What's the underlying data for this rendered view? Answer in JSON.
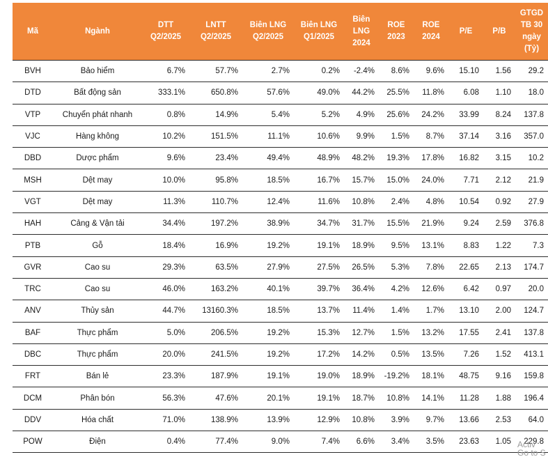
{
  "headers": [
    "Mã",
    "Ngành",
    "DTT\nQ2/2025",
    "LNTT\nQ2/2025",
    "Biên LNG\nQ2/2025",
    "Biên LNG\nQ1/2025",
    "Biên\nLNG\n2024",
    "ROE\n2023",
    "ROE\n2024",
    "P/E",
    "P/B",
    "GTGD\nTB 30\nngày\n(Tỷ)"
  ],
  "rows": [
    [
      "BVH",
      "Bảo hiểm",
      "6.7%",
      "57.7%",
      "2.7%",
      "0.2%",
      "-2.4%",
      "8.6%",
      "9.6%",
      "15.10",
      "1.56",
      "29.2"
    ],
    [
      "DTD",
      "Bất động sản",
      "333.1%",
      "650.8%",
      "57.6%",
      "49.0%",
      "44.2%",
      "25.5%",
      "11.8%",
      "6.08",
      "1.10",
      "18.0"
    ],
    [
      "VTP",
      "Chuyển phát nhanh",
      "0.8%",
      "14.9%",
      "5.4%",
      "5.2%",
      "4.9%",
      "25.6%",
      "24.2%",
      "33.99",
      "8.24",
      "137.8"
    ],
    [
      "VJC",
      "Hàng không",
      "10.2%",
      "151.5%",
      "11.1%",
      "10.6%",
      "9.9%",
      "1.5%",
      "8.7%",
      "37.14",
      "3.16",
      "357.0"
    ],
    [
      "DBD",
      "Dược phẩm",
      "9.6%",
      "23.4%",
      "49.4%",
      "48.9%",
      "48.2%",
      "19.3%",
      "17.8%",
      "16.82",
      "3.15",
      "10.2"
    ],
    [
      "MSH",
      "Dệt may",
      "10.0%",
      "95.8%",
      "18.5%",
      "16.7%",
      "15.7%",
      "15.0%",
      "24.0%",
      "7.71",
      "2.12",
      "21.9"
    ],
    [
      "VGT",
      "Dệt may",
      "11.3%",
      "110.7%",
      "12.4%",
      "11.6%",
      "10.8%",
      "2.4%",
      "4.8%",
      "10.54",
      "0.92",
      "27.9"
    ],
    [
      "HAH",
      "Cảng & Vận tải",
      "34.4%",
      "197.2%",
      "38.9%",
      "34.7%",
      "31.7%",
      "15.5%",
      "21.9%",
      "9.24",
      "2.59",
      "376.8"
    ],
    [
      "PTB",
      "Gỗ",
      "18.4%",
      "16.9%",
      "19.2%",
      "19.1%",
      "18.9%",
      "9.5%",
      "13.1%",
      "8.83",
      "1.22",
      "7.3"
    ],
    [
      "GVR",
      "Cao su",
      "29.3%",
      "63.5%",
      "27.9%",
      "27.5%",
      "26.5%",
      "5.3%",
      "7.8%",
      "22.65",
      "2.13",
      "174.7"
    ],
    [
      "TRC",
      "Cao su",
      "46.0%",
      "163.2%",
      "40.1%",
      "39.7%",
      "36.4%",
      "4.2%",
      "12.6%",
      "6.42",
      "0.97",
      "20.0"
    ],
    [
      "ANV",
      "Thủy sản",
      "44.7%",
      "13160.3%",
      "18.5%",
      "13.7%",
      "11.4%",
      "1.4%",
      "1.7%",
      "13.10",
      "2.00",
      "124.7"
    ],
    [
      "BAF",
      "Thực phẩm",
      "5.0%",
      "206.5%",
      "19.2%",
      "15.3%",
      "12.7%",
      "1.5%",
      "13.2%",
      "17.55",
      "2.41",
      "137.8"
    ],
    [
      "DBC",
      "Thực phẩm",
      "20.0%",
      "241.5%",
      "19.2%",
      "17.2%",
      "14.2%",
      "0.5%",
      "13.5%",
      "7.26",
      "1.52",
      "413.1"
    ],
    [
      "FRT",
      "Bán lẻ",
      "23.3%",
      "187.9%",
      "19.1%",
      "19.0%",
      "18.9%",
      "-19.2%",
      "18.1%",
      "48.75",
      "9.16",
      "159.8"
    ],
    [
      "DCM",
      "Phân bón",
      "56.3%",
      "47.6%",
      "20.1%",
      "19.1%",
      "18.7%",
      "10.8%",
      "14.1%",
      "11.28",
      "1.88",
      "196.4"
    ],
    [
      "DDV",
      "Hóa chất",
      "71.0%",
      "138.9%",
      "13.9%",
      "12.9%",
      "10.8%",
      "3.9%",
      "9.7%",
      "13.66",
      "2.53",
      "64.0"
    ],
    [
      "POW",
      "Điện",
      "0.4%",
      "77.4%",
      "9.0%",
      "7.4%",
      "6.6%",
      "3.4%",
      "3.5%",
      "23.63",
      "1.05",
      "229.8"
    ]
  ],
  "watermark": [
    "Activ",
    "Go to S"
  ]
}
